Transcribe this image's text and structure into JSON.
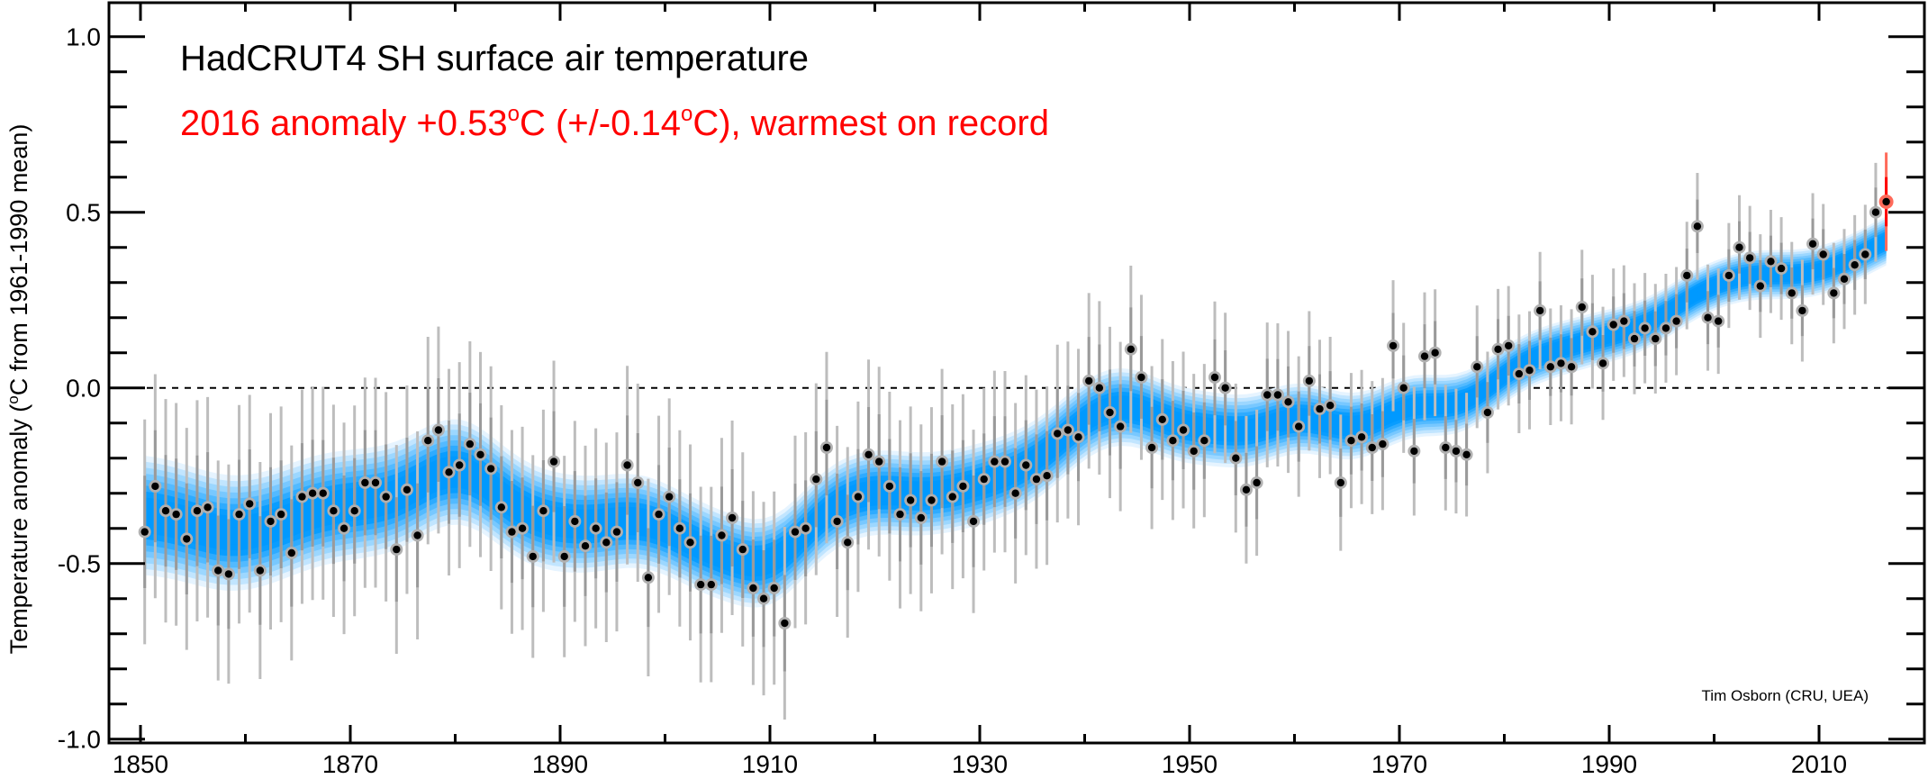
{
  "chart_data": {
    "type": "scatter",
    "title": "HadCRUT4 SH surface air temperature",
    "subtitle": {
      "prefix": "2016 anomaly +0.53",
      "deg1": "o",
      "mid": "C (+/-0.14",
      "deg2": "o",
      "suffix": "C), warmest on record"
    },
    "ylabel": {
      "prefix": "Temperature anomaly (",
      "deg": "o",
      "suffix": "C from 1961-1990 mean)"
    },
    "xlabel": "",
    "credit": "Tim Osborn (CRU, UEA)",
    "xlim": [
      1847,
      2020
    ],
    "ylim": [
      -1.0,
      1.08
    ],
    "x_ticks_major": [
      1850,
      1870,
      1890,
      1910,
      1930,
      1950,
      1970,
      1990,
      2010
    ],
    "x_ticks_minor": [
      1860,
      1880,
      1900,
      1920,
      1940,
      1960,
      1980,
      2000
    ],
    "x_tick_labels": [
      "1850",
      "1870",
      "1890",
      "1910",
      "1930",
      "1950",
      "1970",
      "1990",
      "2010"
    ],
    "y_ticks_major": [
      -1.0,
      -0.5,
      0.0,
      0.5,
      1.0
    ],
    "y_tick_labels": [
      "-1.0",
      "-0.5",
      "0.0",
      "0.5",
      "1.0"
    ],
    "y_minor_step": 0.1,
    "reference_line": {
      "y": 0.0,
      "style": "dashed"
    },
    "grid": false,
    "colors": {
      "point": "#000000",
      "point_halo": "#b0b0b0",
      "error_outer": "#bdbdbd",
      "error_inner": "#9a9a9a",
      "highlight": "#ff0000",
      "highlight_halo": "#ff6a5a",
      "band_center": "#0099ff",
      "band_edge": "#e6f4ff"
    },
    "highlight_year": 2016,
    "series": [
      {
        "name": "Annual anomaly",
        "start_year": 1850,
        "values": [
          -0.41,
          -0.28,
          -0.35,
          -0.36,
          -0.43,
          -0.35,
          -0.34,
          -0.52,
          -0.53,
          -0.36,
          -0.33,
          -0.52,
          -0.38,
          -0.36,
          -0.47,
          -0.31,
          -0.3,
          -0.3,
          -0.35,
          -0.4,
          -0.35,
          -0.27,
          -0.27,
          -0.31,
          -0.46,
          -0.29,
          -0.42,
          -0.15,
          -0.12,
          -0.24,
          -0.22,
          -0.16,
          -0.19,
          -0.23,
          -0.34,
          -0.41,
          -0.4,
          -0.48,
          -0.35,
          -0.21,
          -0.48,
          -0.38,
          -0.45,
          -0.4,
          -0.44,
          -0.41,
          -0.22,
          -0.27,
          -0.54,
          -0.36,
          -0.31,
          -0.4,
          -0.44,
          -0.56,
          -0.56,
          -0.42,
          -0.37,
          -0.46,
          -0.57,
          -0.6,
          -0.57,
          -0.67,
          -0.41,
          -0.4,
          -0.26,
          -0.17,
          -0.38,
          -0.44,
          -0.31,
          -0.19,
          -0.21,
          -0.28,
          -0.36,
          -0.32,
          -0.37,
          -0.32,
          -0.21,
          -0.31,
          -0.28,
          -0.38,
          -0.26,
          -0.21,
          -0.21,
          -0.3,
          -0.22,
          -0.26,
          -0.25,
          -0.13,
          -0.12,
          -0.14,
          0.02,
          0.0,
          -0.07,
          -0.11,
          0.11,
          0.03,
          -0.17,
          -0.09,
          -0.15,
          -0.12,
          -0.18,
          -0.15,
          0.03,
          0.0,
          -0.2,
          -0.29,
          -0.27,
          -0.02,
          -0.02,
          -0.04,
          -0.11,
          0.02,
          -0.06,
          -0.05,
          -0.27,
          -0.15,
          -0.14,
          -0.17,
          -0.16,
          0.12,
          0.0,
          -0.18,
          0.09,
          0.1,
          -0.17,
          -0.18,
          -0.19,
          0.06,
          -0.07,
          0.11,
          0.12,
          0.04,
          0.05,
          0.22,
          0.06,
          0.07,
          0.06,
          0.23,
          0.16,
          0.07,
          0.18,
          0.19,
          0.14,
          0.17,
          0.14,
          0.17,
          0.19,
          0.32,
          0.46,
          0.2,
          0.19,
          0.32,
          0.4,
          0.37,
          0.29,
          0.36,
          0.34,
          0.27,
          0.22,
          0.41,
          0.38,
          0.27,
          0.31,
          0.35,
          0.38,
          0.5,
          0.53
        ]
      }
    ],
    "uncertainty_95": {
      "years": [
        1850,
        1870,
        1900,
        1920,
        1940,
        1950,
        1960,
        1980,
        2000,
        2016
      ],
      "half_width": [
        0.32,
        0.3,
        0.28,
        0.27,
        0.25,
        0.22,
        0.2,
        0.17,
        0.15,
        0.14
      ]
    },
    "smooth_band": {
      "description": "Smoothed trend with uncertainty band",
      "years": [
        1850,
        1880,
        1900,
        1920,
        1944,
        1960,
        1980,
        2000,
        2016
      ],
      "half_width": [
        0.17,
        0.15,
        0.13,
        0.12,
        0.11,
        0.1,
        0.08,
        0.07,
        0.07
      ]
    }
  }
}
